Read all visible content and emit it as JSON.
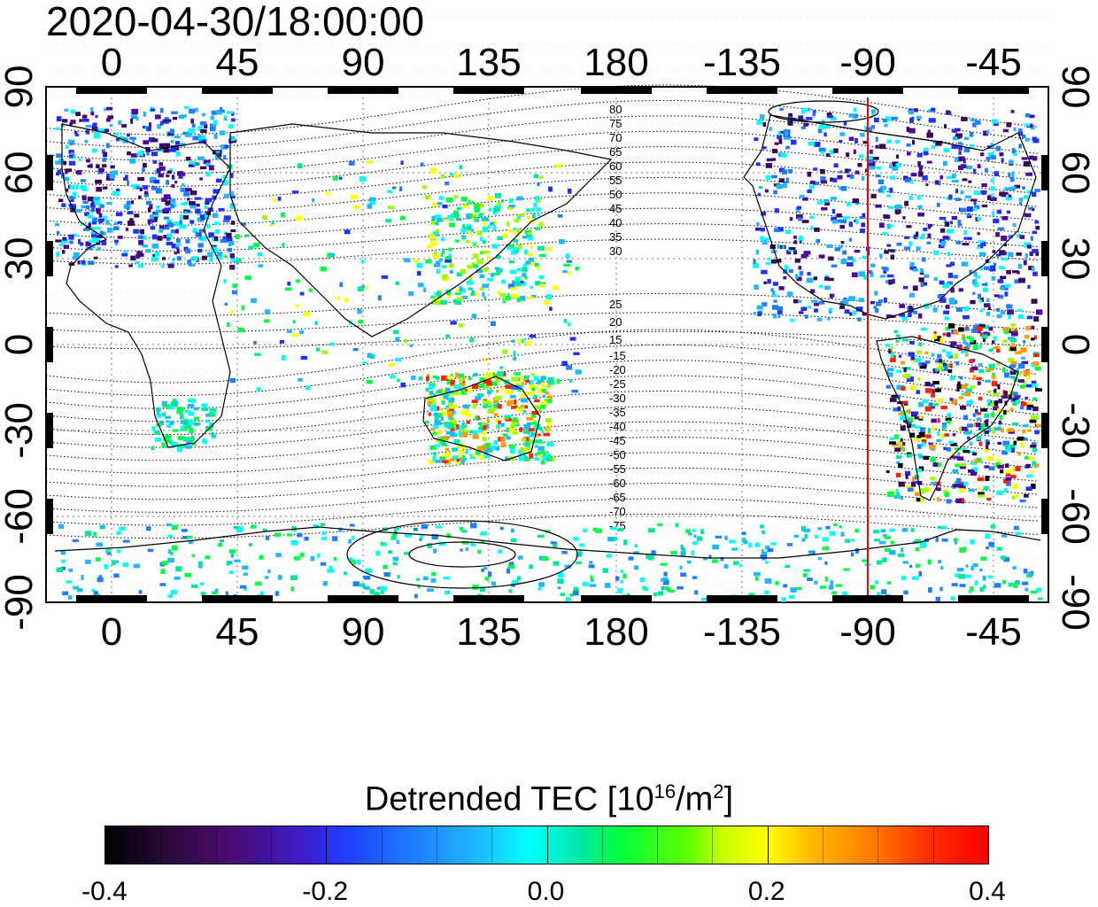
{
  "timestamp": "2020-04-30/18:00:00",
  "axes": {
    "longitude_ticks": [
      "0",
      "45",
      "90",
      "135",
      "180",
      "-135",
      "-90",
      "-45"
    ],
    "latitude_ticks": [
      "90",
      "60",
      "30",
      "0",
      "-30",
      "-60",
      "-90"
    ]
  },
  "contours": {
    "north_labels": [
      "80",
      "75",
      "70",
      "65",
      "60",
      "55",
      "50",
      "45",
      "40",
      "35",
      "30",
      "25",
      "20",
      "15"
    ],
    "south_labels": [
      "-15",
      "-20",
      "-25",
      "-30",
      "-35",
      "-40",
      "-45",
      "-50",
      "-55",
      "-60",
      "-65",
      "-70",
      "-75"
    ]
  },
  "terminator_longitude": -90,
  "colorbar": {
    "title_prefix": "Detrended TEC  [10",
    "title_exp1": "16",
    "title_mid": "/m",
    "title_exp2": "2",
    "title_suffix": "]",
    "labels": [
      "-0.4",
      "-0.2",
      "0.0",
      "0.2",
      "0.4"
    ],
    "range": [
      -0.4,
      0.4
    ]
  },
  "colors": {
    "terminator": "#ff0000",
    "frame": "#000000"
  }
}
